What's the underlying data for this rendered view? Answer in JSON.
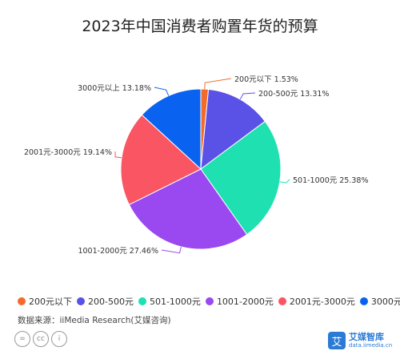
{
  "chart_data": {
    "type": "pie",
    "title": "2023年中国消费者购置年货的预算",
    "slices": [
      {
        "label": "200元以下",
        "value": 1.53,
        "display": "200元以下  1.53%",
        "color": "#f26b2c"
      },
      {
        "label": "200-500元",
        "value": 13.31,
        "display": "200-500元 13.31%",
        "color": "#5a51e6"
      },
      {
        "label": "501-1000元",
        "value": 25.38,
        "display": "501-1000元 25.38%",
        "color": "#1fe0b0"
      },
      {
        "label": "1001-2000元",
        "value": 27.46,
        "display": "1001-2000元 27.46%",
        "color": "#9a48ef"
      },
      {
        "label": "2001元-3000元",
        "value": 19.14,
        "display": "2001元-3000元 19.14%",
        "color": "#fa5563"
      },
      {
        "label": "3000元以上",
        "value": 13.18,
        "display": "3000元以上 13.18%",
        "color": "#0a63f0"
      }
    ],
    "legend_position": "bottom"
  },
  "source": "数据来源：iiMedia Research(艾媒咨询)",
  "cc_icons": [
    "=",
    "cc",
    "i"
  ],
  "brand": {
    "name": "艾媒智库",
    "url": "data.iimedia.cn",
    "logo_char": "艾"
  }
}
